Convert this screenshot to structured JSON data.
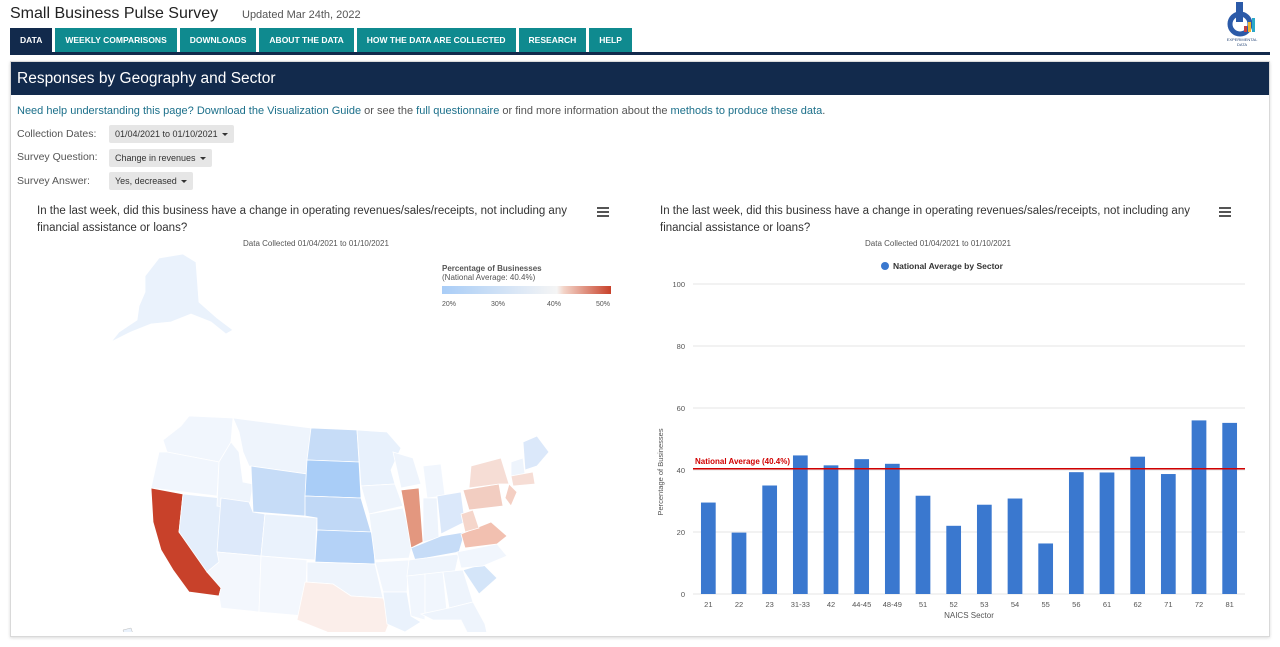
{
  "app": {
    "title": "Small Business Pulse Survey",
    "updated": "Updated Mar 24th, 2022",
    "logo_text": "EXPERIMENTAL DATA"
  },
  "tabs": [
    {
      "label": "DATA",
      "active": true
    },
    {
      "label": "WEEKLY COMPARISONS"
    },
    {
      "label": "DOWNLOADS"
    },
    {
      "label": "ABOUT THE DATA"
    },
    {
      "label": "HOW THE DATA ARE COLLECTED"
    },
    {
      "label": "RESEARCH"
    },
    {
      "label": "HELP"
    }
  ],
  "panel": {
    "title": "Responses by Geography and Sector",
    "help": {
      "t1": "Need help understanding this page? ",
      "link1": "Download the Visualization Guide",
      "t2": " or see the ",
      "link2": "full questionnaire",
      "t3": " or find more information about the ",
      "link3": "methods to produce these data",
      "t4": "."
    },
    "filters": {
      "dates_label": "Collection Dates:",
      "dates_value": "01/04/2021 to 01/10/2021",
      "question_label": "Survey Question:",
      "question_value": "Change in revenues",
      "answer_label": "Survey Answer:",
      "answer_value": "Yes, decreased"
    }
  },
  "map": {
    "title": "In the last week, did this business have a change in operating revenues/sales/receipts, not including any financial assistance or loans?",
    "subtitle": "Data Collected 01/04/2021 to 01/10/2021",
    "legend_title": "Percentage of Businesses",
    "legend_sub": "(National Average: 40.4%)",
    "legend_ticks": [
      "20%",
      "30%",
      "40%",
      "50%"
    ],
    "colors": {
      "low": "#a9cdf7",
      "mid": "#f5f5f5",
      "high": "#c8412a"
    }
  },
  "chart_data": {
    "type": "bar",
    "title": "In the last week, did this business have a change in operating revenues/sales/receipts, not including any financial assistance or loans?",
    "subtitle": "Data Collected 01/04/2021 to 01/10/2021",
    "xlabel": "NAICS Sector",
    "ylabel": "Percentage of Businesses",
    "ylim": [
      0,
      100
    ],
    "yticks": [
      "0",
      "20",
      "40",
      "60",
      "80",
      "100"
    ],
    "categories": [
      "21",
      "22",
      "23",
      "31-33",
      "42",
      "44-45",
      "48-49",
      "51",
      "52",
      "53",
      "54",
      "55",
      "56",
      "61",
      "62",
      "71",
      "72",
      "81"
    ],
    "series": [
      {
        "name": "National Average by Sector",
        "color": "#3a78cf",
        "values": [
          29.5,
          19.8,
          35,
          44.7,
          41.5,
          43.5,
          42,
          31.7,
          22,
          28.8,
          30.8,
          16.3,
          39.3,
          39.2,
          44.3,
          38.7,
          56,
          55.2
        ]
      }
    ],
    "reference_line": {
      "label": "National Average (40.4%)",
      "value": 40.4,
      "color": "#d10000"
    },
    "legend": "top"
  }
}
